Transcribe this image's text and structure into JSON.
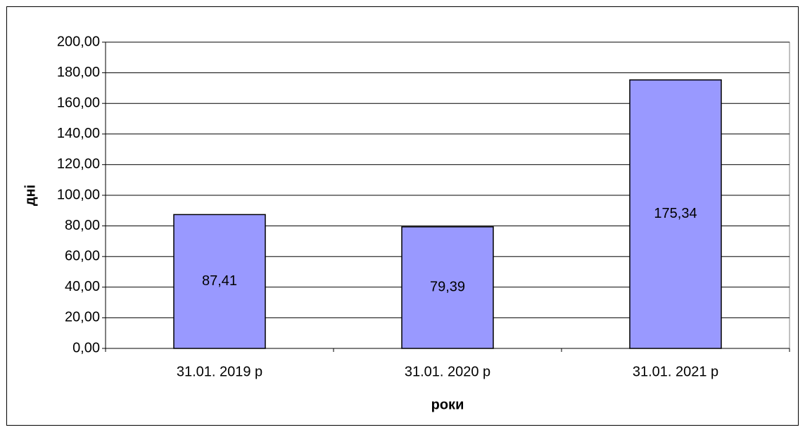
{
  "chart_data": {
    "type": "bar",
    "categories": [
      "31.01. 2019 р",
      "31.01. 2020 р",
      "31.01. 2021 р"
    ],
    "values": [
      87.41,
      79.39,
      175.34
    ],
    "value_labels": [
      "87,41",
      "79,39",
      "175,34"
    ],
    "color": "#9999ff",
    "xlabel": "роки",
    "ylabel": "дні",
    "ylim": [
      0,
      200
    ],
    "yticks": [
      {
        "value": 0,
        "label": "0,00"
      },
      {
        "value": 20,
        "label": "20,00"
      },
      {
        "value": 40,
        "label": "40,00"
      },
      {
        "value": 60,
        "label": "60,00"
      },
      {
        "value": 80,
        "label": "80,00"
      },
      {
        "value": 100,
        "label": "100,00"
      },
      {
        "value": 120,
        "label": "120,00"
      },
      {
        "value": 140,
        "label": "140,00"
      },
      {
        "value": 160,
        "label": "160,00"
      },
      {
        "value": 180,
        "label": "180,00"
      },
      {
        "value": 200,
        "label": "200,00"
      }
    ],
    "grid": true
  }
}
